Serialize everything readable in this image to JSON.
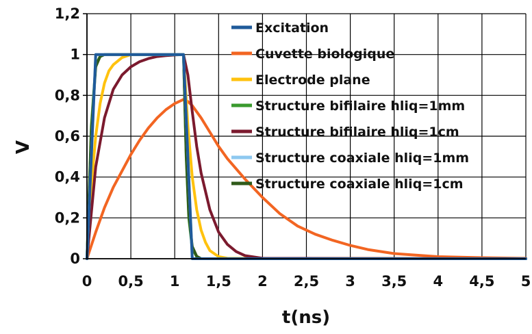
{
  "chart_data": {
    "type": "line",
    "xlabel": "t(ns)",
    "ylabel": "V",
    "xlim": [
      0,
      5
    ],
    "ylim": [
      0,
      1.2
    ],
    "x_ticks": [
      "0",
      "0,5",
      "1",
      "1,5",
      "2",
      "2,5",
      "3",
      "3,5",
      "4",
      "4,5",
      "5"
    ],
    "y_ticks": [
      "0",
      "0,2",
      "0,4",
      "0,6",
      "0,8",
      "1",
      "1,2"
    ],
    "grid": true,
    "legend_position": "top-right",
    "series": [
      {
        "name": "Excitation",
        "color": "#1f5a9a",
        "x": [
          0,
          0.1,
          1.1,
          1.2,
          5
        ],
        "y": [
          0,
          1,
          1,
          0,
          0
        ]
      },
      {
        "name": "Cuvette biologique",
        "color": "#f26522",
        "x": [
          0,
          0.1,
          0.2,
          0.3,
          0.4,
          0.5,
          0.6,
          0.7,
          0.8,
          0.9,
          1.0,
          1.1,
          1.15,
          1.2,
          1.3,
          1.4,
          1.5,
          1.6,
          1.8,
          2.0,
          2.2,
          2.4,
          2.6,
          2.8,
          3.0,
          3.2,
          3.5,
          4.0,
          4.5,
          5.0
        ],
        "y": [
          0,
          0.13,
          0.25,
          0.35,
          0.43,
          0.51,
          0.58,
          0.64,
          0.69,
          0.73,
          0.76,
          0.78,
          0.77,
          0.75,
          0.69,
          0.62,
          0.55,
          0.49,
          0.39,
          0.3,
          0.22,
          0.16,
          0.12,
          0.09,
          0.065,
          0.045,
          0.025,
          0.01,
          0.005,
          0.002
        ]
      },
      {
        "name": "Electrode plane",
        "color": "#ffc20e",
        "x": [
          0,
          0.05,
          0.1,
          0.15,
          0.2,
          0.25,
          0.3,
          0.4,
          0.5,
          1.1,
          1.15,
          1.2,
          1.25,
          1.3,
          1.35,
          1.4,
          1.5,
          1.6,
          5.0
        ],
        "y": [
          0,
          0.36,
          0.6,
          0.76,
          0.86,
          0.92,
          0.95,
          0.985,
          1.0,
          1.0,
          0.65,
          0.4,
          0.24,
          0.14,
          0.08,
          0.04,
          0.01,
          0.002,
          0
        ]
      },
      {
        "name": "Structure bifilaire hliq=1mm",
        "color": "#3a9a2e",
        "x": [
          0,
          0.05,
          0.1,
          0.15,
          0.2,
          1.1,
          1.13,
          1.16,
          1.2,
          1.25,
          1.3,
          5.0
        ],
        "y": [
          0,
          0.65,
          0.95,
          0.99,
          1.0,
          1.0,
          0.5,
          0.2,
          0.05,
          0.01,
          0,
          0
        ]
      },
      {
        "name": "Structure bifilaire hliq=1cm",
        "color": "#7b1a2e",
        "x": [
          0,
          0.1,
          0.2,
          0.3,
          0.4,
          0.5,
          0.6,
          0.7,
          0.8,
          0.9,
          1.0,
          1.1,
          1.15,
          1.2,
          1.25,
          1.3,
          1.4,
          1.5,
          1.6,
          1.7,
          1.8,
          2.0,
          5.0
        ],
        "y": [
          0,
          0.45,
          0.69,
          0.83,
          0.9,
          0.94,
          0.965,
          0.98,
          0.99,
          0.995,
          0.998,
          1.0,
          0.9,
          0.72,
          0.55,
          0.42,
          0.24,
          0.13,
          0.07,
          0.035,
          0.015,
          0.002,
          0
        ]
      },
      {
        "name": "Structure coaxiale hliq=1mm",
        "color": "#8dc8f0",
        "x": [
          0,
          0.1,
          1.1,
          1.2,
          5
        ],
        "y": [
          0,
          1,
          1,
          0,
          0
        ]
      },
      {
        "name": "Structure coaxiale hliq=1cm",
        "color": "#2f5a1a",
        "x": [
          0,
          0.05,
          0.1,
          0.15,
          0.2,
          1.1,
          1.13,
          1.16,
          1.2,
          1.25,
          1.3,
          5.0
        ],
        "y": [
          0,
          0.62,
          0.94,
          0.99,
          1.0,
          1.0,
          0.52,
          0.22,
          0.06,
          0.012,
          0,
          0
        ]
      }
    ]
  }
}
